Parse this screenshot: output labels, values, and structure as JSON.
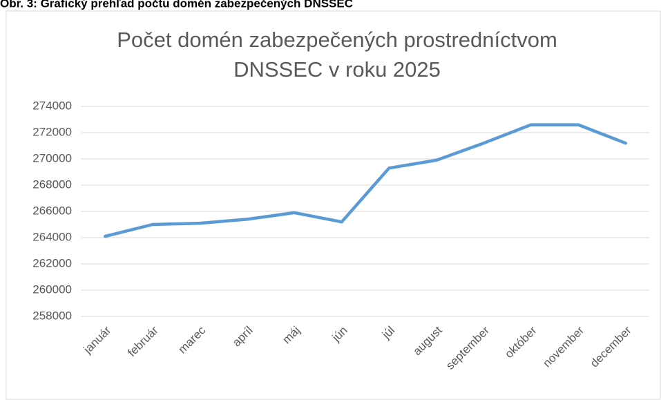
{
  "caption": "Obr. 3: Grafický prehľad počtu domén zabezpečených DNSSEC",
  "chart_data": {
    "type": "line",
    "title": [
      "Počet  domén zabezpečených prostredníctvom",
      "DNSSEC v roku 2025"
    ],
    "categories": [
      "január",
      "február",
      "marec",
      "apríl",
      "máj",
      "jún",
      "júl",
      "august",
      "september",
      "október",
      "november",
      "december"
    ],
    "series": [
      {
        "name": "Počet domén",
        "color": "#5b9bd5",
        "values": [
          264100,
          265000,
          265100,
          265400,
          265900,
          265200,
          269300,
          269900,
          271200,
          272600,
          272600,
          271200
        ]
      }
    ],
    "ylim": [
      258000,
      274000
    ],
    "yticks": [
      258000,
      260000,
      262000,
      264000,
      266000,
      268000,
      270000,
      272000,
      274000
    ],
    "grid": true
  }
}
